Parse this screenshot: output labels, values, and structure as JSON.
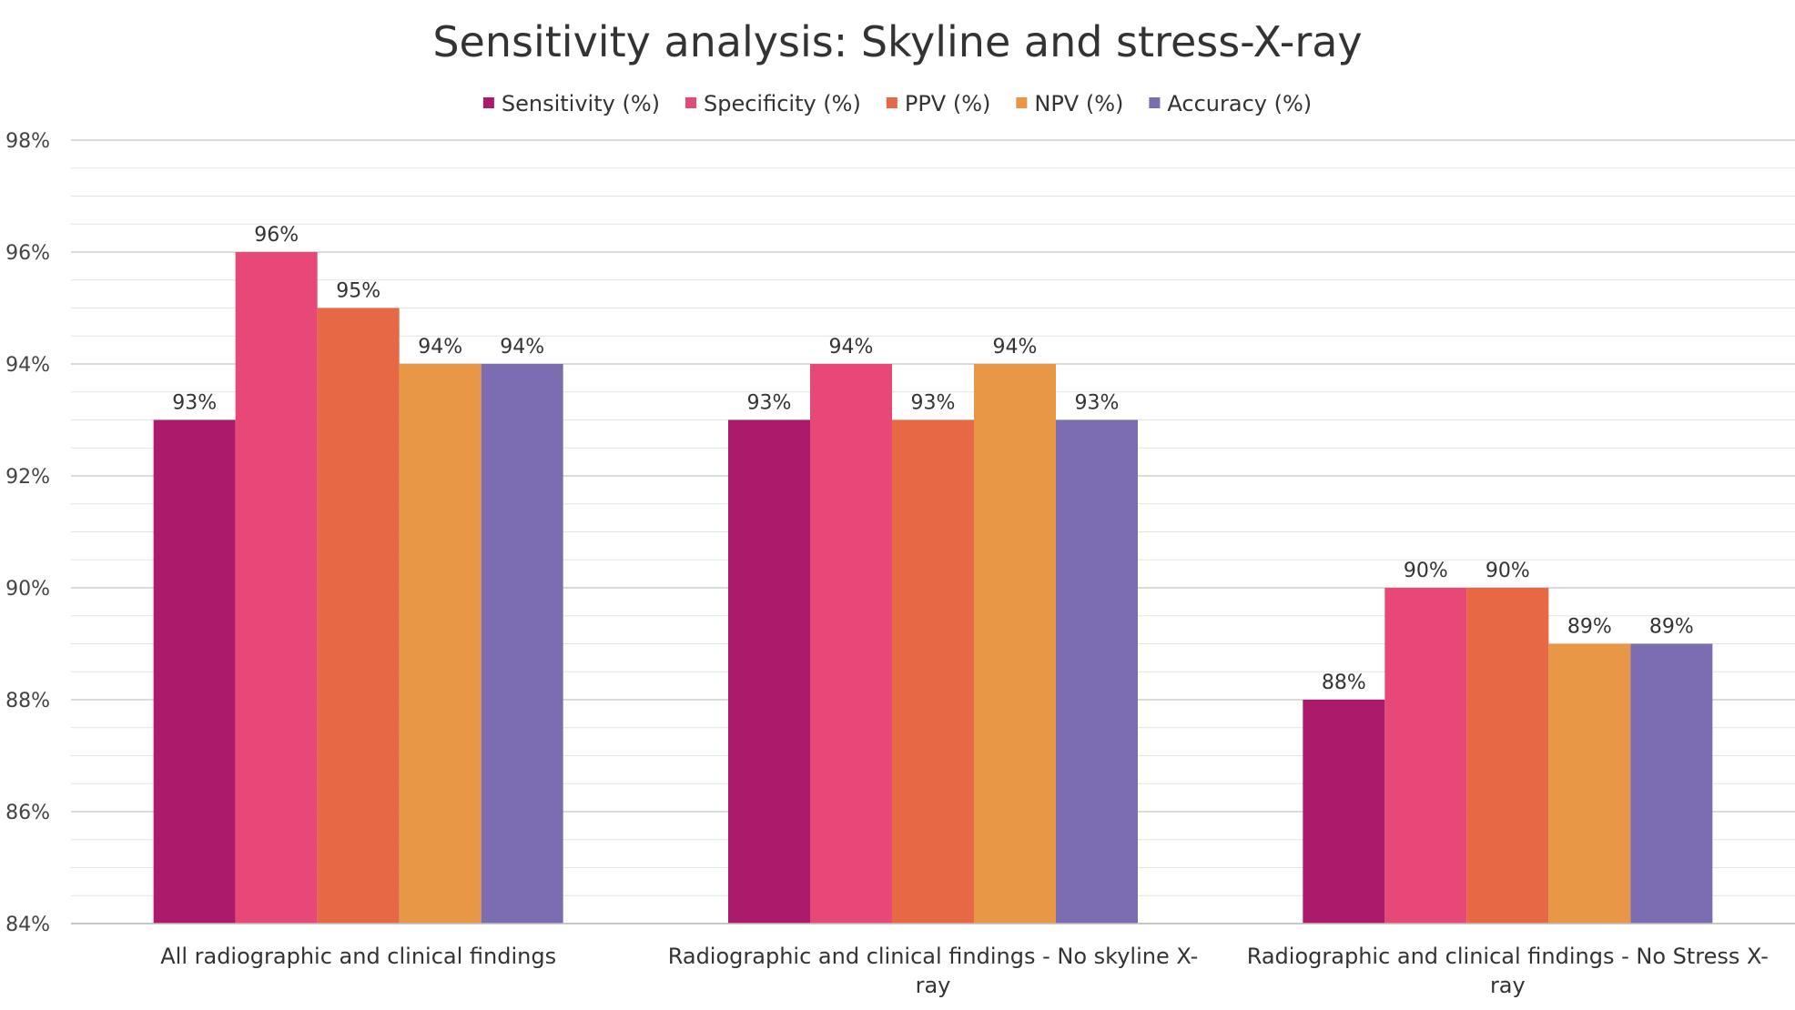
{
  "chart_data": {
    "type": "bar",
    "title": "Sensitivity analysis: Skyline and stress-X-ray",
    "xlabel": "",
    "ylabel": "",
    "ylim": [
      84,
      98
    ],
    "y_ticks": [
      84,
      86,
      88,
      90,
      92,
      94,
      96,
      98
    ],
    "y_tick_labels": [
      "84%",
      "86%",
      "88%",
      "90%",
      "92%",
      "94%",
      "96%",
      "98%"
    ],
    "y_minor_step": 0.5,
    "grid": true,
    "legend_position": "top",
    "categories": [
      "All radiographic and clinical findings",
      "Radiographic and clinical findings - No skyline X-ray",
      "Radiographic and clinical findings - No Stress X-ray"
    ],
    "category_lines": [
      [
        "All radiographic and clinical findings"
      ],
      [
        "Radiographic and clinical findings - No skyline X-",
        "ray"
      ],
      [
        "Radiographic and clinical findings - No Stress X-",
        "ray"
      ]
    ],
    "series": [
      {
        "name": "Sensitivity (%)",
        "color": "#ac1a6c",
        "values": [
          93,
          93,
          88
        ],
        "labels": [
          "93%",
          "93%",
          "88%"
        ]
      },
      {
        "name": "Specificity (%)",
        "color": "#e84878",
        "values": [
          96,
          94,
          90
        ],
        "labels": [
          "96%",
          "94%",
          "90%"
        ]
      },
      {
        "name": "PPV (%)",
        "color": "#e66844",
        "values": [
          95,
          93,
          90
        ],
        "labels": [
          "95%",
          "93%",
          "90%"
        ]
      },
      {
        "name": "NPV (%)",
        "color": "#e89746",
        "values": [
          94,
          94,
          89
        ],
        "labels": [
          "94%",
          "94%",
          "89%"
        ]
      },
      {
        "name": "Accuracy (%)",
        "color": "#7b6db0",
        "values": [
          94,
          93,
          89
        ],
        "labels": [
          "94%",
          "93%",
          "89%"
        ]
      }
    ]
  }
}
